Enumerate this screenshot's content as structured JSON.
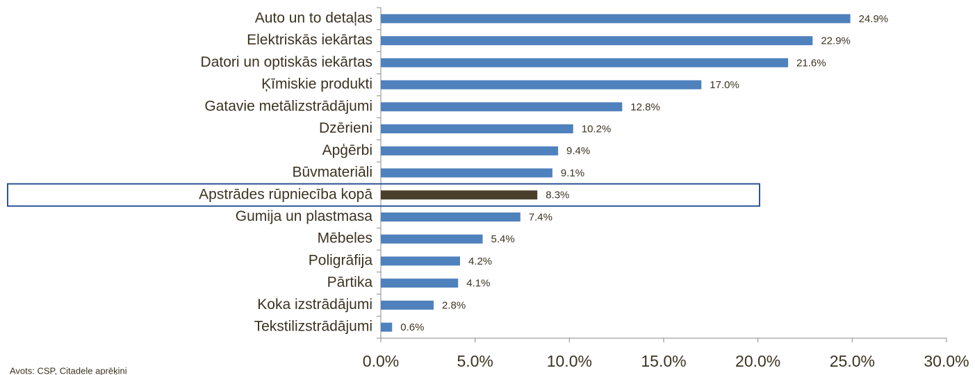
{
  "chart_data": {
    "type": "bar",
    "orientation": "horizontal",
    "categories": [
      "Auto un to detaļas",
      "Elektriskās iekārtas",
      "Datori un optiskās iekārtas",
      "Ķīmiskie produkti",
      "Gatavie metālizstrādājumi",
      "Dzērieni",
      "Apģērbi",
      "Būvmateriāli",
      "Apstrādes rūpniecība kopā",
      "Gumija un plastmasa",
      "Mēbeles",
      "Poligrāfija",
      "Pārtika",
      "Koka izstrādājumi",
      "Tekstilizstrādājumi"
    ],
    "values": [
      24.9,
      22.9,
      21.6,
      17.0,
      12.8,
      10.2,
      9.4,
      9.1,
      8.3,
      7.4,
      5.4,
      4.2,
      4.1,
      2.8,
      0.6
    ],
    "value_labels": [
      "24.9%",
      "22.9%",
      "21.6%",
      "17.0%",
      "12.8%",
      "10.2%",
      "9.4%",
      "9.1%",
      "8.3%",
      "7.4%",
      "5.4%",
      "4.2%",
      "4.1%",
      "2.8%",
      "0.6%"
    ],
    "colors": [
      "#4f81bd",
      "#4f81bd",
      "#4f81bd",
      "#4f81bd",
      "#4f81bd",
      "#4f81bd",
      "#4f81bd",
      "#4f81bd",
      "#4a3f2a",
      "#4f81bd",
      "#4f81bd",
      "#4f81bd",
      "#4f81bd",
      "#4f81bd",
      "#4f81bd"
    ],
    "xlim": [
      0,
      30
    ],
    "xticks": [
      {
        "value": 0,
        "label": "0.0%"
      },
      {
        "value": 5,
        "label": "5.0%"
      },
      {
        "value": 10,
        "label": "10.0%"
      },
      {
        "value": 15,
        "label": "15.0%"
      },
      {
        "value": 20,
        "label": "20.0%"
      },
      {
        "value": 25,
        "label": "25.0%"
      },
      {
        "value": 30,
        "label": "30.0%"
      }
    ],
    "source": "Avots: CSP, Citadele aprēķini"
  }
}
